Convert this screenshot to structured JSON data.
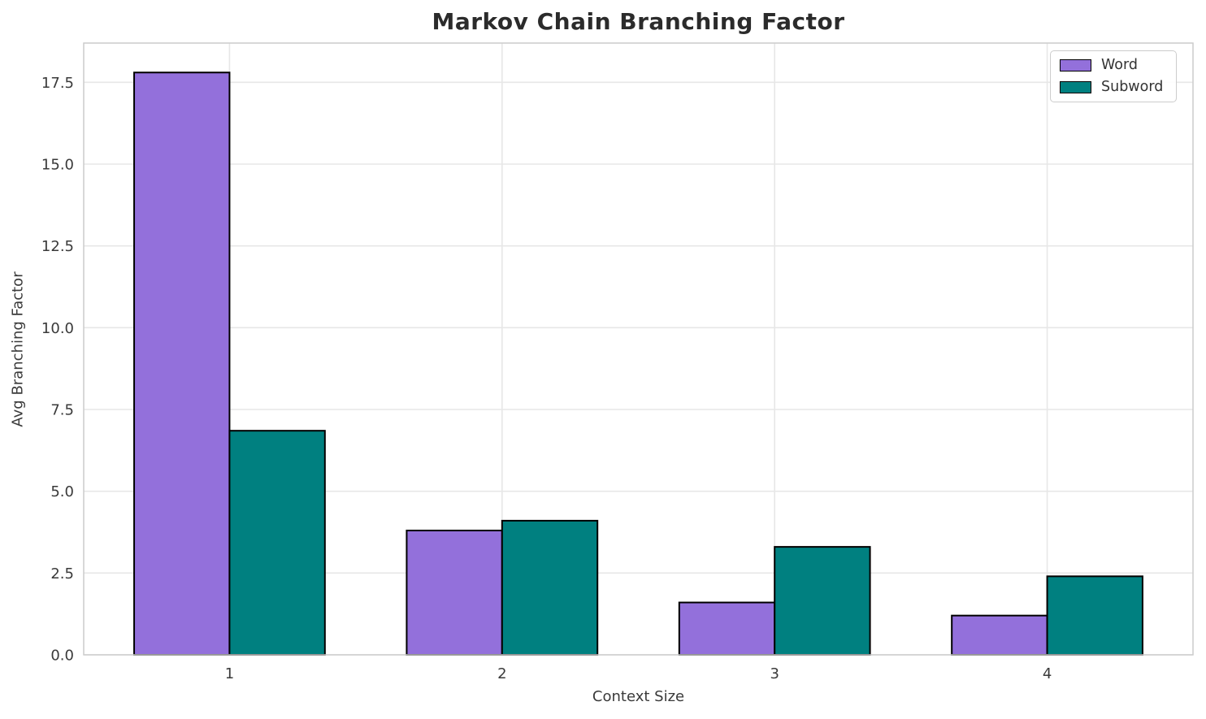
{
  "chart_data": {
    "type": "bar",
    "title": "Markov Chain Branching Factor",
    "xlabel": "Context Size",
    "ylabel": "Avg Branching Factor",
    "categories": [
      "1",
      "2",
      "3",
      "4"
    ],
    "series": [
      {
        "name": "Word",
        "color": "#9370DB",
        "values": [
          17.8,
          3.8,
          1.6,
          1.2
        ]
      },
      {
        "name": "Subword",
        "color": "#008080",
        "values": [
          6.85,
          4.1,
          3.3,
          2.4
        ]
      }
    ],
    "bar_width": 0.35,
    "bar_edge_color": "#000000",
    "ytick_labels": [
      "0.0",
      "2.5",
      "5.0",
      "7.5",
      "10.0",
      "12.5",
      "15.0",
      "17.5"
    ],
    "ytick_values": [
      0,
      2.5,
      5,
      7.5,
      10,
      12.5,
      15,
      17.5
    ],
    "ylim": [
      0,
      18.7
    ],
    "grid": true,
    "grid_color": "#e7e7e7",
    "spine_color": "#cccccc",
    "tick_label_color": "#3a3a3a",
    "legend_position": "upper right"
  }
}
